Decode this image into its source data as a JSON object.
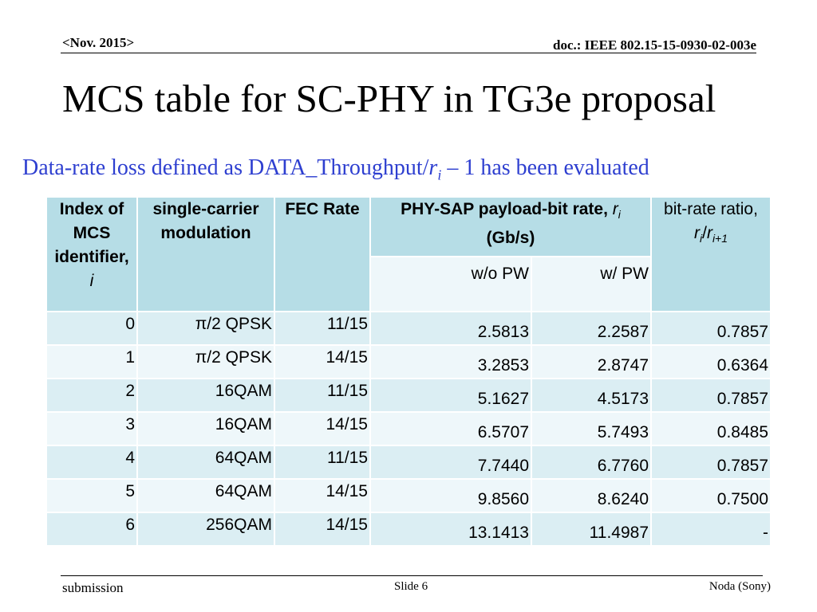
{
  "header": {
    "date": "<Nov. 2015>",
    "doc": "doc.: IEEE 802.15-15-0930-02-003e"
  },
  "title": "MCS table for SC-PHY in TG3e proposal",
  "subtitle": {
    "prefix": "Data-rate loss defined as DATA_Throughput/",
    "var": "r",
    "sub": "i",
    "suffix": " – 1 has been evaluated"
  },
  "table": {
    "headers": {
      "index": "Index of MCS identifier,",
      "index_var": "i",
      "modulation": "single-carrier modulation",
      "fec": "FEC Rate",
      "phy": "PHY-SAP payload-bit rate, ",
      "phy_var": "r",
      "phy_sub": "i",
      "phy_unit": "(Gb/s)",
      "wo_pw": "w/o PW",
      "w_pw": "w/ PW",
      "ratio": "bit-rate ratio,",
      "ratio_r1": "r",
      "ratio_s1": "i",
      "ratio_r2": "r",
      "ratio_s2": "i+1"
    },
    "rows": [
      {
        "index": "0",
        "modulation": "π/2 QPSK",
        "fec": "11/15",
        "wo_pw": "2.5813",
        "w_pw": "2.2587",
        "ratio": "0.7857"
      },
      {
        "index": "1",
        "modulation": "π/2 QPSK",
        "fec": "14/15",
        "wo_pw": "3.2853",
        "w_pw": "2.8747",
        "ratio": "0.6364"
      },
      {
        "index": "2",
        "modulation": "16QAM",
        "fec": "11/15",
        "wo_pw": "5.1627",
        "w_pw": "4.5173",
        "ratio": "0.7857"
      },
      {
        "index": "3",
        "modulation": "16QAM",
        "fec": "14/15",
        "wo_pw": "6.5707",
        "w_pw": "5.7493",
        "ratio": "0.8485"
      },
      {
        "index": "4",
        "modulation": "64QAM",
        "fec": "11/15",
        "wo_pw": "7.7440",
        "w_pw": "6.7760",
        "ratio": "0.7857"
      },
      {
        "index": "5",
        "modulation": "64QAM",
        "fec": "14/15",
        "wo_pw": "9.8560",
        "w_pw": "8.6240",
        "ratio": "0.7500"
      },
      {
        "index": "6",
        "modulation": "256QAM",
        "fec": "14/15",
        "wo_pw": "13.1413",
        "w_pw": "11.4987",
        "ratio": "-"
      }
    ]
  },
  "footer": {
    "left": "submission",
    "slide": "Slide 6",
    "author": "Noda (Sony)"
  }
}
